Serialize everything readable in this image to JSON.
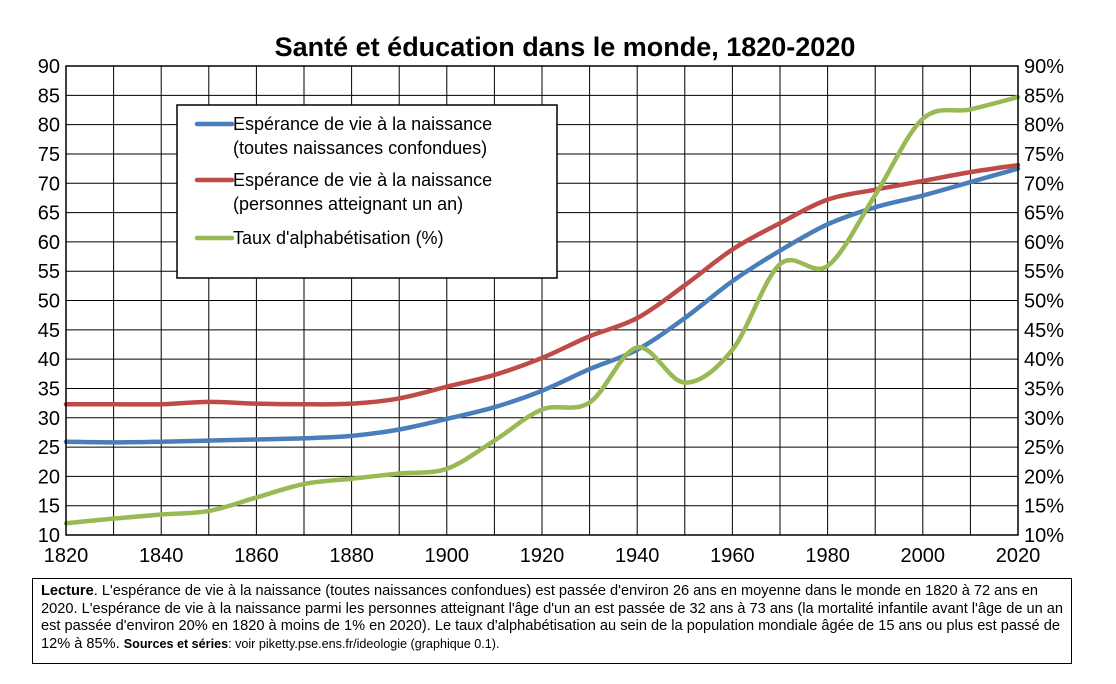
{
  "chart_data": {
    "type": "line",
    "title": "Santé et éducation dans le monde, 1820-2020",
    "xlim": [
      1820,
      2020
    ],
    "x_ticks": [
      "1820",
      "1840",
      "1860",
      "1880",
      "1900",
      "1920",
      "1940",
      "1960",
      "1980",
      "2000",
      "2020"
    ],
    "ylim_left": [
      10,
      90
    ],
    "y_ticks_left": [
      "10",
      "15",
      "20",
      "25",
      "30",
      "35",
      "40",
      "45",
      "50",
      "55",
      "60",
      "65",
      "70",
      "75",
      "80",
      "85",
      "90"
    ],
    "ylim_right": [
      10,
      90
    ],
    "y_ticks_right": [
      "10%",
      "15%",
      "20%",
      "25%",
      "30%",
      "35%",
      "40%",
      "45%",
      "50%",
      "55%",
      "60%",
      "65%",
      "70%",
      "75%",
      "80%",
      "85%",
      "90%"
    ],
    "grid": true,
    "legend_position": "top-left",
    "series": [
      {
        "name": "Espérance de vie à la naissance",
        "name_line2": "(toutes naissances confondues)",
        "color": "#4a7ebb",
        "axis": "left",
        "x": [
          1820,
          1830,
          1840,
          1850,
          1860,
          1870,
          1880,
          1890,
          1900,
          1910,
          1920,
          1930,
          1940,
          1950,
          1960,
          1970,
          1980,
          1990,
          2000,
          2010,
          2020
        ],
        "values": [
          25.9,
          25.8,
          25.9,
          26.1,
          26.3,
          26.5,
          26.9,
          28.0,
          29.8,
          31.8,
          34.6,
          38.3,
          41.6,
          47.0,
          53.3,
          58.5,
          63.0,
          65.9,
          67.9,
          70.2,
          72.5
        ]
      },
      {
        "name": "Espérance de vie à la naissance",
        "name_line2": "(personnes atteignant un an)",
        "color": "#be4b48",
        "axis": "left",
        "x": [
          1820,
          1830,
          1840,
          1850,
          1860,
          1870,
          1880,
          1890,
          1900,
          1910,
          1920,
          1930,
          1940,
          1950,
          1960,
          1970,
          1980,
          1990,
          2000,
          2010,
          2020
        ],
        "values": [
          32.3,
          32.3,
          32.3,
          32.7,
          32.4,
          32.3,
          32.4,
          33.3,
          35.3,
          37.3,
          40.2,
          43.9,
          47.0,
          52.6,
          58.7,
          63.2,
          67.2,
          68.9,
          70.4,
          71.9,
          73.1
        ]
      },
      {
        "name": "Taux d'alphabétisation (%)",
        "name_line2": "",
        "color": "#98b954",
        "axis": "right",
        "x": [
          1820,
          1830,
          1840,
          1850,
          1860,
          1870,
          1880,
          1890,
          1900,
          1910,
          1920,
          1930,
          1940,
          1950,
          1960,
          1970,
          1980,
          1990,
          2000,
          2010,
          2020
        ],
        "values": [
          12.0,
          12.8,
          13.5,
          14.1,
          16.4,
          18.7,
          19.6,
          20.5,
          21.3,
          26.1,
          31.4,
          32.6,
          42.0,
          36.0,
          41.6,
          56.2,
          55.9,
          68.0,
          81.0,
          82.6,
          84.7
        ]
      }
    ]
  },
  "caption": {
    "lead": "Lecture",
    "text": ". L'espérance de vie à la naissance (toutes naissances confondues) est passée d'environ 26 ans en moyenne dans le monde en 1820 à 72 ans en 2020. L'espérance de vie à la naissance parmi les personnes atteignant l'âge d'un an est passée de 32 ans à 73 ans (la mortalité infantile avant l'âge de un an est passée d'environ 20% en 1820 à moins de 1% en 2020). Le taux d'alphabétisation au sein de la population mondiale âgée de 15 ans ou plus est passé de 12% à 85%.",
    "sources_label": "Sources et séries",
    "sources_text": ": voir piketty.pse.ens.fr/ideologie (graphique 0.1)."
  }
}
